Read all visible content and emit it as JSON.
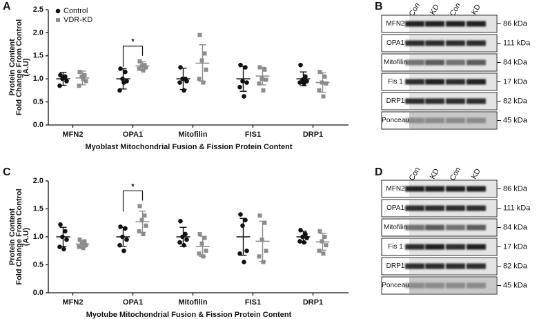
{
  "chart_data": [
    {
      "type": "dotplot",
      "panel": "A",
      "ylabel": [
        "Protein Content",
        "Fold Change From Control",
        "(A.U)"
      ],
      "xlabel": "Myoblast Mitochondrial Fusion & Fission Protein Content",
      "categories": [
        "MFN2",
        "OPA1",
        "Mitofilin",
        "FIS1",
        "DRP1"
      ],
      "ylim": [
        0,
        2.5
      ],
      "yticks": [
        {
          "value": 0,
          "label": "0.0"
        },
        0.5,
        {
          "value": 1,
          "label": "1.0"
        },
        1.5,
        {
          "value": 2,
          "label": "2.0"
        },
        2.5
      ],
      "legend": "top-left",
      "series": [
        {
          "name": "Control",
          "color": "#111111",
          "marker": "circle",
          "values": [
            [
              1.08,
              1.05,
              1.0,
              0.95,
              0.85,
              1.02
            ],
            [
              1.22,
              1.15,
              1.0,
              0.95,
              0.75,
              0.92
            ],
            [
              1.25,
              1.0,
              1.0,
              0.95,
              0.92,
              0.75
            ],
            [
              1.3,
              1.25,
              0.95,
              0.92,
              0.82,
              0.62
            ],
            [
              1.3,
              1.05,
              0.98,
              0.95,
              0.92,
              0.9
            ]
          ],
          "mean": [
            1.0,
            1.0,
            1.0,
            1.0,
            1.0
          ],
          "sd": [
            0.14,
            0.22,
            0.23,
            0.27,
            0.15
          ]
        },
        {
          "name": "VDR-KD",
          "color": "#8c8c8c",
          "marker": "square",
          "values": [
            [
              1.15,
              1.08,
              1.05,
              0.95,
              0.85,
              1.0
            ],
            [
              1.38,
              1.3,
              1.28,
              1.25,
              1.22,
              1.18
            ],
            [
              1.95,
              1.55,
              1.4,
              1.2,
              1.0,
              0.92
            ],
            [
              1.25,
              1.2,
              1.0,
              0.98,
              0.9,
              0.75
            ],
            [
              1.15,
              1.05,
              0.92,
              0.9,
              0.75,
              0.62
            ]
          ],
          "mean": [
            1.02,
            1.28,
            1.34,
            1.06,
            0.92
          ],
          "sd": [
            0.15,
            0.09,
            0.4,
            0.19,
            0.21
          ]
        }
      ],
      "annotations": [
        {
          "text": "*",
          "category": "OPA1"
        }
      ]
    },
    {
      "type": "dotplot",
      "panel": "C",
      "ylabel": [
        "Protein Content",
        "Fold Change From Control",
        "(A.U)"
      ],
      "xlabel": "Myotube Mitochondrial Fusion & Fission Protein Content",
      "categories": [
        "MFN2",
        "OPA1",
        "Mitofilin",
        "FIS1",
        "DRP1"
      ],
      "ylim": [
        0,
        2.0
      ],
      "yticks": [
        {
          "value": 0,
          "label": "0.0"
        },
        0.5,
        {
          "value": 1,
          "label": "1.0"
        },
        1.5,
        {
          "value": 2,
          "label": "2.0"
        }
      ],
      "series": [
        {
          "color": "#111111",
          "marker": "circle",
          "values": [
            [
              1.22,
              1.1,
              1.0,
              0.95,
              0.82,
              0.78
            ],
            [
              1.18,
              1.15,
              1.0,
              0.95,
              0.85,
              0.75
            ],
            [
              1.28,
              1.05,
              1.0,
              0.95,
              0.9,
              0.85
            ],
            [
              1.4,
              1.3,
              1.2,
              0.75,
              0.7,
              0.55
            ],
            [
              1.12,
              1.05,
              1.0,
              0.98,
              0.92,
              0.9
            ]
          ],
          "mean": [
            1.0,
            1.0,
            1.0,
            1.0,
            1.0
          ],
          "sd": [
            0.17,
            0.17,
            0.17,
            0.33,
            0.1
          ]
        },
        {
          "color": "#8c8c8c",
          "marker": "square",
          "values": [
            [
              0.95,
              0.92,
              0.88,
              0.85,
              0.82,
              0.8
            ],
            [
              1.55,
              1.38,
              1.3,
              1.2,
              1.1,
              1.05
            ],
            [
              1.05,
              0.98,
              0.88,
              0.75,
              0.7,
              0.65
            ],
            [
              1.38,
              1.25,
              0.95,
              0.75,
              0.65,
              0.55
            ],
            [
              1.1,
              1.0,
              0.92,
              0.85,
              0.75,
              0.7
            ]
          ],
          "mean": [
            0.87,
            1.27,
            0.83,
            0.92,
            0.91
          ],
          "sd": [
            0.06,
            0.19,
            0.18,
            0.36,
            0.15
          ]
        }
      ],
      "annotations": [
        {
          "text": "*",
          "category": "OPA1"
        }
      ]
    }
  ],
  "blots": [
    {
      "panel": "B",
      "lanes": [
        "Con",
        "KD",
        "Con",
        "KD"
      ],
      "rows": [
        {
          "name": "MFN2",
          "size": "86 kDa"
        },
        {
          "name": "OPA1",
          "size": "111 kDa"
        },
        {
          "name": "Mitofilin",
          "size": "84 kDa"
        },
        {
          "name": "Fis 1",
          "size": "17 kDa"
        },
        {
          "name": "DRP1",
          "size": "82 kDa"
        },
        {
          "name": "Ponceau",
          "size": "45 kDa"
        }
      ]
    },
    {
      "panel": "D",
      "lanes": [
        "Con",
        "KD",
        "Con",
        "KD"
      ],
      "rows": [
        {
          "name": "MFN2",
          "size": "86 kDa"
        },
        {
          "name": "OPA1",
          "size": "111 kDa"
        },
        {
          "name": "Mitofilin",
          "size": "84 kDa"
        },
        {
          "name": "Fis 1",
          "size": "17 kDa"
        },
        {
          "name": "DRP1",
          "size": "82 kDa"
        },
        {
          "name": "Ponceau",
          "size": "45 kDa"
        }
      ]
    }
  ]
}
